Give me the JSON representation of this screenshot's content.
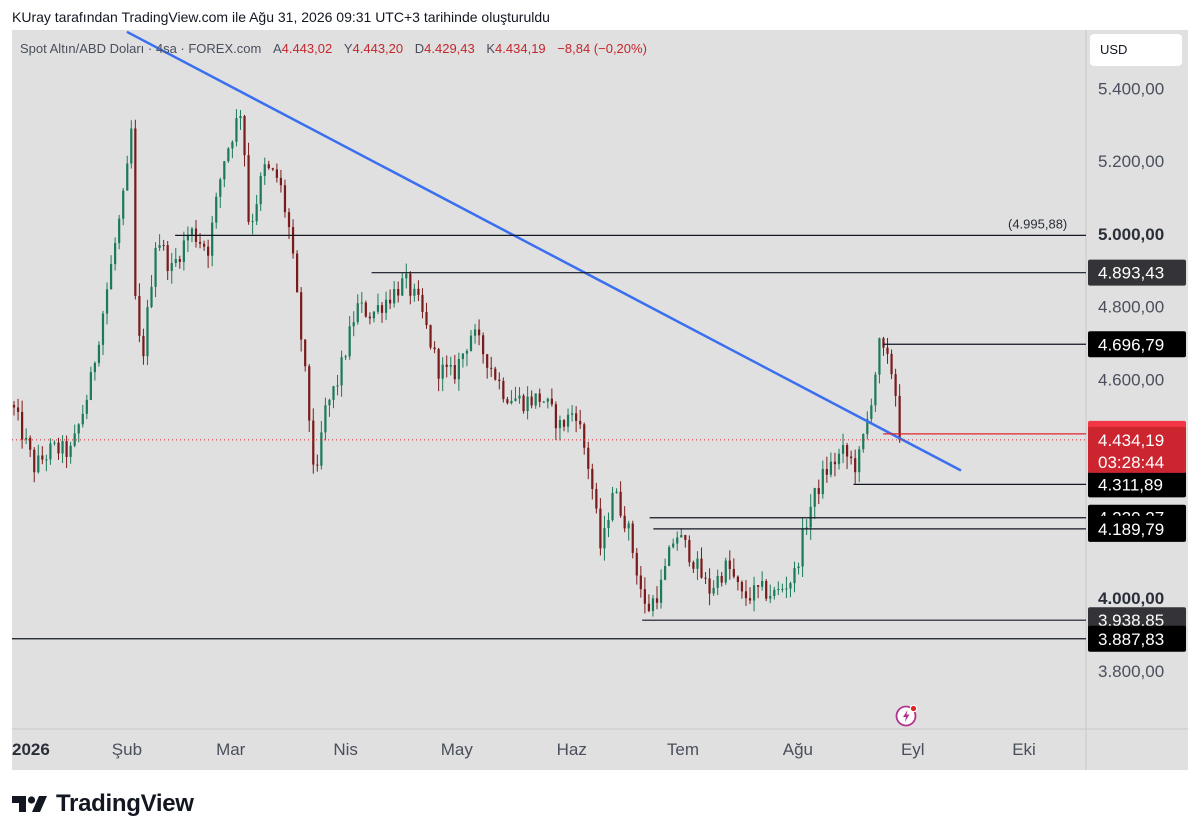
{
  "header": {
    "created_by": "KUray tarafından TradingView.com ile Ağu 31, 2026 09:31 UTC+3 tarihinde oluşturuldu"
  },
  "legend": {
    "symbol": "Spot Altın/ABD Doları · 4sa · FOREX.com",
    "open_label": "A",
    "open_value": "4.443,02",
    "high_label": "Y",
    "high_value": "4.443,20",
    "low_label": "D",
    "low_value": "4.429,43",
    "close_label": "K",
    "close_value": "4.434,19",
    "change": "−8,84 (−0,20%)"
  },
  "currency_button": "USD",
  "footer": {
    "brand": "TradingView"
  },
  "colors": {
    "background": "#e0e0e0",
    "up_candle": "#1b7a5a",
    "down_candle": "#7a1b1b",
    "trendline": "#3a6ff0",
    "level_line": "#131722",
    "current_price_red": "#e0242c",
    "dark_tag": "#1e1e22"
  },
  "chart_data": {
    "type": "candlestick",
    "symbol": "Spot Altın/ABD Doları",
    "timeframe": "4sa",
    "ylim": [
      3640,
      5560
    ],
    "y_ticks": [
      "5.400,00",
      "5.200,00",
      "5.000,00",
      "4.800,00",
      "4.600,00",
      "4.000,00",
      "3.800,00"
    ],
    "y_tick_values": [
      5400,
      5200,
      5000,
      4800,
      4600,
      4000,
      3800
    ],
    "x_ticks": [
      "2026",
      "Şub",
      "Mar",
      "Nis",
      "May",
      "Haz",
      "Tem",
      "Ağu",
      "Eyl",
      "Eki"
    ],
    "x_tick_dates": [
      "2026-01-01",
      "2026-02-01",
      "2026-03-01",
      "2026-04-01",
      "2026-05-01",
      "2026-06-01",
      "2026-07-01",
      "2026-08-01",
      "2026-09-01",
      "2026-10-01"
    ],
    "price_path": [
      [
        "2026-01-01",
        4530
      ],
      [
        "2026-01-07",
        4360
      ],
      [
        "2026-01-12",
        4410
      ],
      [
        "2026-01-17",
        4400
      ],
      [
        "2026-01-22",
        4580
      ],
      [
        "2026-01-27",
        4870
      ],
      [
        "2026-02-01",
        5150
      ],
      [
        "2026-02-02",
        5380
      ],
      [
        "2026-02-03",
        4840
      ],
      [
        "2026-02-05",
        4640
      ],
      [
        "2026-02-09",
        5000
      ],
      [
        "2026-02-13",
        4900
      ],
      [
        "2026-02-18",
        5010
      ],
      [
        "2026-02-23",
        4960
      ],
      [
        "2026-02-27",
        5200
      ],
      [
        "2026-03-04",
        5350
      ],
      [
        "2026-03-06",
        5010
      ],
      [
        "2026-03-10",
        5180
      ],
      [
        "2026-03-14",
        5150
      ],
      [
        "2026-03-17",
        5000
      ],
      [
        "2026-03-21",
        4620
      ],
      [
        "2026-03-24",
        4300
      ],
      [
        "2026-03-26",
        4500
      ],
      [
        "2026-03-30",
        4600
      ],
      [
        "2026-04-04",
        4800
      ],
      [
        "2026-04-08",
        4780
      ],
      [
        "2026-04-13",
        4830
      ],
      [
        "2026-04-17",
        4870
      ],
      [
        "2026-04-21",
        4800
      ],
      [
        "2026-04-26",
        4630
      ],
      [
        "2026-04-30",
        4610
      ],
      [
        "2026-05-05",
        4730
      ],
      [
        "2026-05-09",
        4660
      ],
      [
        "2026-05-14",
        4560
      ],
      [
        "2026-05-19",
        4540
      ],
      [
        "2026-05-24",
        4550
      ],
      [
        "2026-05-29",
        4470
      ],
      [
        "2026-06-02",
        4520
      ],
      [
        "2026-06-06",
        4340
      ],
      [
        "2026-06-09",
        4120
      ],
      [
        "2026-06-12",
        4300
      ],
      [
        "2026-06-16",
        4200
      ],
      [
        "2026-06-21",
        3960
      ],
      [
        "2026-06-25",
        4030
      ],
      [
        "2026-06-29",
        4180
      ],
      [
        "2026-07-03",
        4120
      ],
      [
        "2026-07-08",
        4020
      ],
      [
        "2026-07-13",
        4090
      ],
      [
        "2026-07-17",
        4000
      ],
      [
        "2026-07-22",
        4020
      ],
      [
        "2026-07-26",
        4010
      ],
      [
        "2026-07-31",
        4060
      ],
      [
        "2026-08-04",
        4240
      ],
      [
        "2026-08-08",
        4340
      ],
      [
        "2026-08-13",
        4400
      ],
      [
        "2026-08-17",
        4360
      ],
      [
        "2026-08-20",
        4500
      ],
      [
        "2026-08-23",
        4690
      ],
      [
        "2026-08-27",
        4610
      ],
      [
        "2026-08-28",
        4480
      ],
      [
        "2026-08-29",
        4434.19
      ]
    ],
    "candle_count": 220,
    "trendline": {
      "start": [
        "2026-02-01",
        5555
      ],
      "end": [
        "2026-09-14",
        4350
      ]
    },
    "levels": [
      {
        "price": 4995.88,
        "label": "(4.995,88)",
        "start": "2026-02-14"
      },
      {
        "price": 4893.43,
        "label": "4.893,43",
        "start": "2026-04-08"
      },
      {
        "price": 4696.79,
        "label": "4.696,79",
        "start": "2026-08-24"
      },
      {
        "price": 4311.89,
        "label": "4.311,89",
        "start": "2026-08-16"
      },
      {
        "price": 4220.27,
        "label": "4.220,27",
        "start": "2026-06-22"
      },
      {
        "price": 4189.79,
        "label": "4.189,79",
        "start": "2026-06-23"
      },
      {
        "price": 3938.85,
        "label": "3.938,85",
        "start": "2026-06-20"
      },
      {
        "price": 3887.83,
        "label": "3.887,83",
        "start": "2026-01-01"
      }
    ],
    "red_level": {
      "price": 4450.71,
      "label": "4.450,71",
      "start": "2026-08-24"
    },
    "current": {
      "price": 4434.19,
      "label": "4.434,19",
      "countdown": "03:28:44"
    },
    "major_tick": "5.000,00",
    "minor_tick": "4.000,00"
  }
}
